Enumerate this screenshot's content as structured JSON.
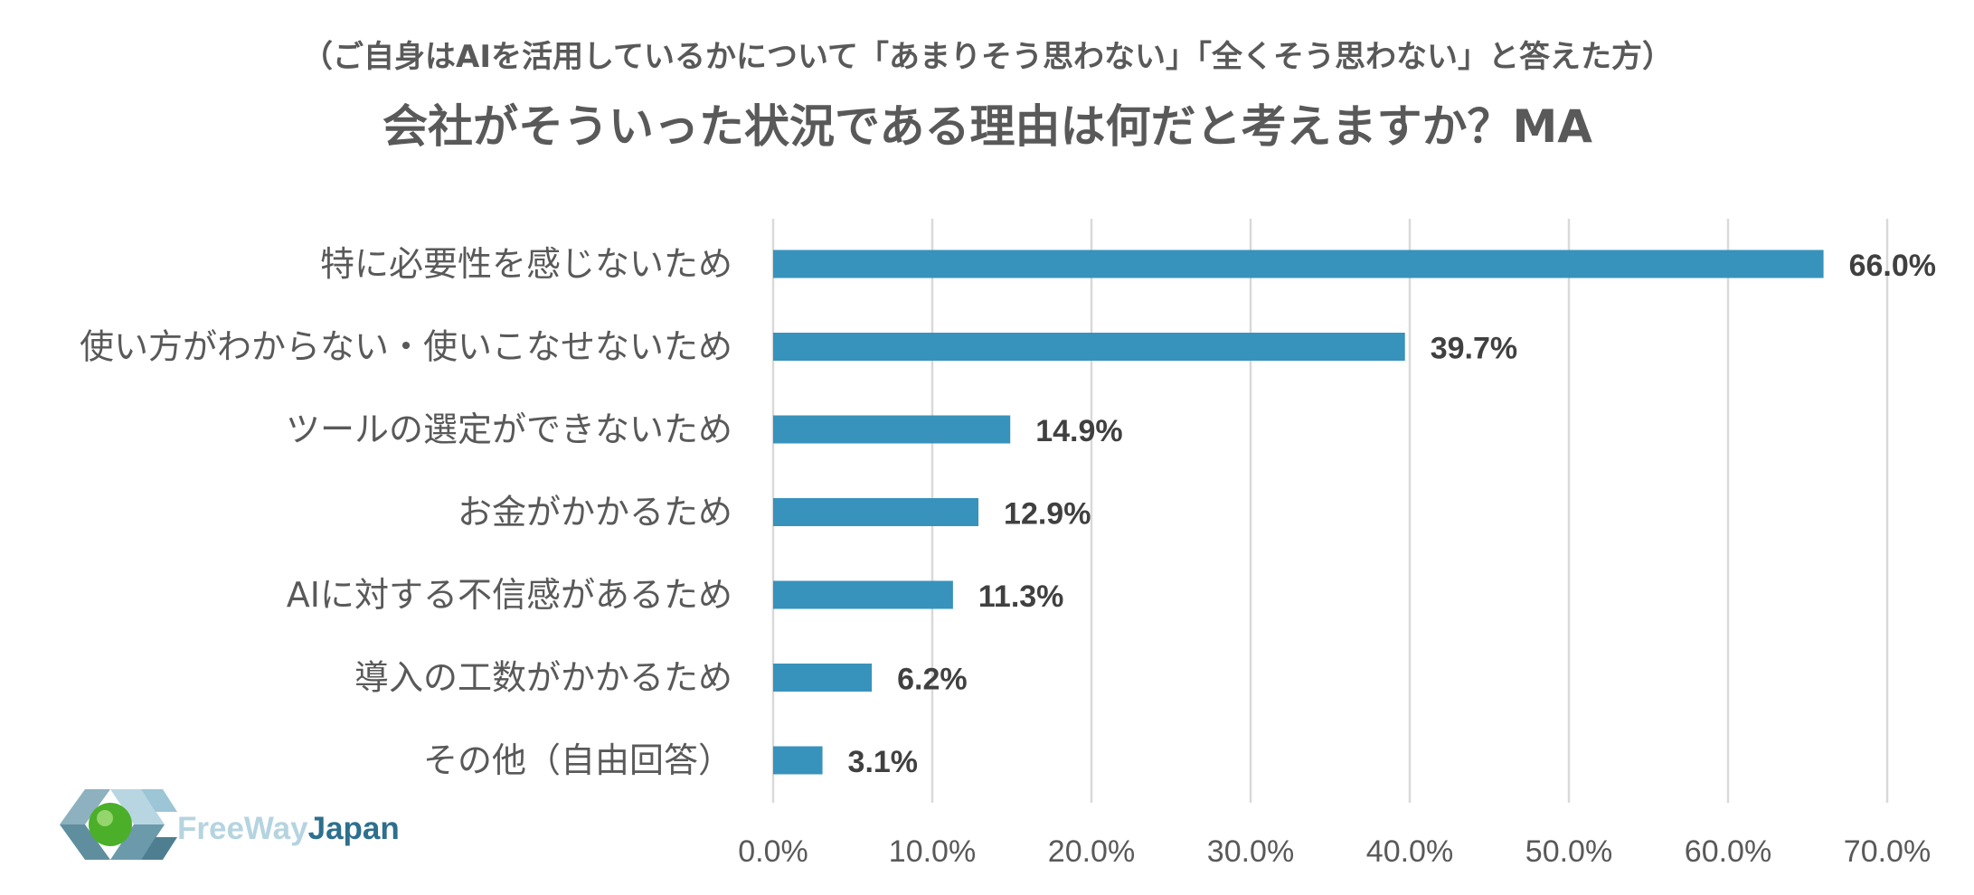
{
  "chart_data": {
    "type": "bar",
    "orientation": "horizontal",
    "subtitle": "（ご自身はAIを活用しているかについて「あまりそう思わない」「全くそう思わない」と答えた方）",
    "title": "会社がそういった状況である理由は何だと考えますか？MA",
    "categories": [
      "特に必要性を感じないため",
      "使い方がわからない・使いこなせないため",
      "ツールの選定ができないため",
      "お金がかかるため",
      "AIに対する不信感があるため",
      "導入の工数がかかるため",
      "その他（自由回答）"
    ],
    "values": [
      66.0,
      39.7,
      14.9,
      12.9,
      11.3,
      6.2,
      3.1
    ],
    "value_labels": [
      "66.0%",
      "39.7%",
      "14.9%",
      "12.9%",
      "11.3%",
      "6.2%",
      "3.1%"
    ],
    "xlim": [
      0,
      70
    ],
    "x_ticks": [
      0,
      10,
      20,
      30,
      40,
      50,
      60,
      70
    ],
    "x_tick_labels": [
      "0.0%",
      "10.0%",
      "20.0%",
      "30.0%",
      "40.0%",
      "50.0%",
      "60.0%",
      "70.0%"
    ],
    "xlabel": "",
    "ylabel": "",
    "grid": true,
    "bar_color": "#3792bc"
  },
  "logo": {
    "brand_light": "FreeWay",
    "brand_dark": "Japan",
    "colors": {
      "light": "#b5d4e0",
      "dark": "#2e6f8e",
      "dot": "#4caf2a"
    }
  }
}
